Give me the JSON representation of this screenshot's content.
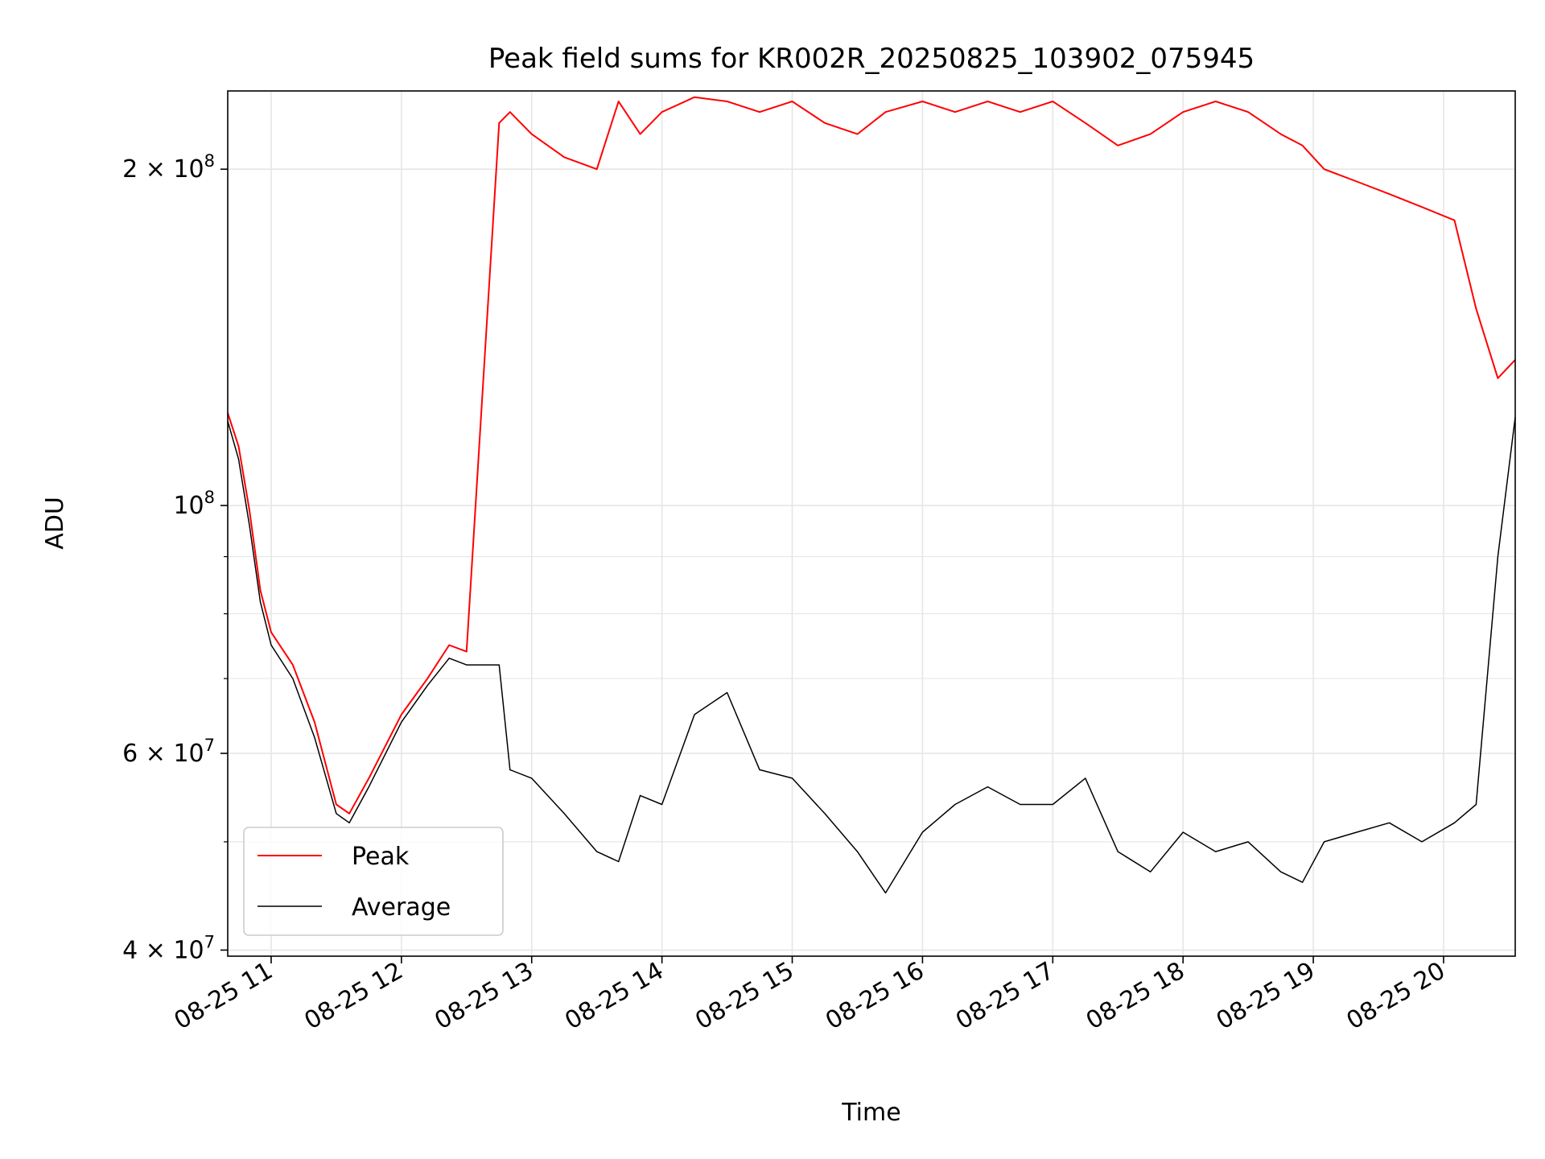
{
  "chart_data": {
    "type": "line",
    "title": "Peak field sums for KR002R_20250825_103902_075945",
    "xlabel": "Time",
    "ylabel": "ADU",
    "yscale": "log",
    "ylim": [
      39500000,
      235000000
    ],
    "xlim": [
      "2025-08-25 10:40",
      "2025-08-25 20:33"
    ],
    "grid": true,
    "legend_position": "lower left",
    "x_ticks": [
      {
        "t": "2025-08-25 11:00",
        "label": "08-25 11"
      },
      {
        "t": "2025-08-25 12:00",
        "label": "08-25 12"
      },
      {
        "t": "2025-08-25 13:00",
        "label": "08-25 13"
      },
      {
        "t": "2025-08-25 14:00",
        "label": "08-25 14"
      },
      {
        "t": "2025-08-25 15:00",
        "label": "08-25 15"
      },
      {
        "t": "2025-08-25 16:00",
        "label": "08-25 16"
      },
      {
        "t": "2025-08-25 17:00",
        "label": "08-25 17"
      },
      {
        "t": "2025-08-25 18:00",
        "label": "08-25 18"
      },
      {
        "t": "2025-08-25 19:00",
        "label": "08-25 19"
      },
      {
        "t": "2025-08-25 20:00",
        "label": "08-25 20"
      }
    ],
    "y_ticks": [
      {
        "value": 40000000,
        "mantissa": "4",
        "exp": "7"
      },
      {
        "value": 60000000,
        "mantissa": "6",
        "exp": "7"
      },
      {
        "value": 100000000,
        "mantissa": "",
        "exp": "8"
      },
      {
        "value": 200000000,
        "mantissa": "2",
        "exp": "8"
      }
    ],
    "y_minor_ticks": [
      50000000,
      70000000,
      80000000,
      90000000
    ],
    "series": [
      {
        "name": "Peak",
        "color": "#ff0000",
        "x": [
          "2025-08-25 10:40",
          "2025-08-25 10:45",
          "2025-08-25 10:50",
          "2025-08-25 10:55",
          "2025-08-25 11:00",
          "2025-08-25 11:10",
          "2025-08-25 11:20",
          "2025-08-25 11:30",
          "2025-08-25 11:36",
          "2025-08-25 11:45",
          "2025-08-25 12:00",
          "2025-08-25 12:12",
          "2025-08-25 12:22",
          "2025-08-25 12:30",
          "2025-08-25 12:45",
          "2025-08-25 12:50",
          "2025-08-25 13:00",
          "2025-08-25 13:15",
          "2025-08-25 13:30",
          "2025-08-25 13:40",
          "2025-08-25 13:50",
          "2025-08-25 14:00",
          "2025-08-25 14:15",
          "2025-08-25 14:30",
          "2025-08-25 14:45",
          "2025-08-25 15:00",
          "2025-08-25 15:15",
          "2025-08-25 15:30",
          "2025-08-25 15:43",
          "2025-08-25 16:00",
          "2025-08-25 16:15",
          "2025-08-25 16:30",
          "2025-08-25 16:45",
          "2025-08-25 17:00",
          "2025-08-25 17:15",
          "2025-08-25 17:30",
          "2025-08-25 17:45",
          "2025-08-25 18:00",
          "2025-08-25 18:15",
          "2025-08-25 18:30",
          "2025-08-25 18:45",
          "2025-08-25 18:55",
          "2025-08-25 19:05",
          "2025-08-25 19:20",
          "2025-08-25 19:35",
          "2025-08-25 19:50",
          "2025-08-25 20:05",
          "2025-08-25 20:15",
          "2025-08-25 20:25",
          "2025-08-25 20:33"
        ],
        "y": [
          121000000,
          113000000,
          99000000,
          84000000,
          77000000,
          72000000,
          64000000,
          54000000,
          53000000,
          57000000,
          65000000,
          70000000,
          75000000,
          74000000,
          220000000,
          225000000,
          215000000,
          205000000,
          200000000,
          230000000,
          215000000,
          225000000,
          232000000,
          230000000,
          225000000,
          230000000,
          220000000,
          215000000,
          225000000,
          230000000,
          225000000,
          230000000,
          225000000,
          230000000,
          220000000,
          210000000,
          215000000,
          225000000,
          230000000,
          225000000,
          215000000,
          210000000,
          200000000,
          195000000,
          190000000,
          185000000,
          180000000,
          150000000,
          130000000,
          135000000
        ]
      },
      {
        "name": "Average",
        "color": "#000000",
        "x": [
          "2025-08-25 10:40",
          "2025-08-25 10:45",
          "2025-08-25 10:50",
          "2025-08-25 10:55",
          "2025-08-25 11:00",
          "2025-08-25 11:10",
          "2025-08-25 11:20",
          "2025-08-25 11:30",
          "2025-08-25 11:36",
          "2025-08-25 11:45",
          "2025-08-25 12:00",
          "2025-08-25 12:12",
          "2025-08-25 12:22",
          "2025-08-25 12:30",
          "2025-08-25 12:45",
          "2025-08-25 12:50",
          "2025-08-25 13:00",
          "2025-08-25 13:15",
          "2025-08-25 13:30",
          "2025-08-25 13:40",
          "2025-08-25 13:50",
          "2025-08-25 14:00",
          "2025-08-25 14:15",
          "2025-08-25 14:30",
          "2025-08-25 14:45",
          "2025-08-25 15:00",
          "2025-08-25 15:15",
          "2025-08-25 15:30",
          "2025-08-25 15:43",
          "2025-08-25 16:00",
          "2025-08-25 16:15",
          "2025-08-25 16:30",
          "2025-08-25 16:45",
          "2025-08-25 17:00",
          "2025-08-25 17:15",
          "2025-08-25 17:30",
          "2025-08-25 17:45",
          "2025-08-25 18:00",
          "2025-08-25 18:15",
          "2025-08-25 18:30",
          "2025-08-25 18:45",
          "2025-08-25 18:55",
          "2025-08-25 19:05",
          "2025-08-25 19:20",
          "2025-08-25 19:35",
          "2025-08-25 19:50",
          "2025-08-25 20:05",
          "2025-08-25 20:15",
          "2025-08-25 20:25",
          "2025-08-25 20:33"
        ],
        "y": [
          119000000,
          110000000,
          96000000,
          82000000,
          75000000,
          70000000,
          62000000,
          53000000,
          52000000,
          56000000,
          64000000,
          69000000,
          73000000,
          72000000,
          72000000,
          58000000,
          57000000,
          53000000,
          49000000,
          48000000,
          55000000,
          54000000,
          65000000,
          68000000,
          58000000,
          57000000,
          53000000,
          49000000,
          45000000,
          51000000,
          54000000,
          56000000,
          54000000,
          54000000,
          57000000,
          49000000,
          47000000,
          51000000,
          49000000,
          50000000,
          47000000,
          46000000,
          50000000,
          51000000,
          52000000,
          50000000,
          52000000,
          54000000,
          90000000,
          120000000
        ]
      }
    ]
  }
}
